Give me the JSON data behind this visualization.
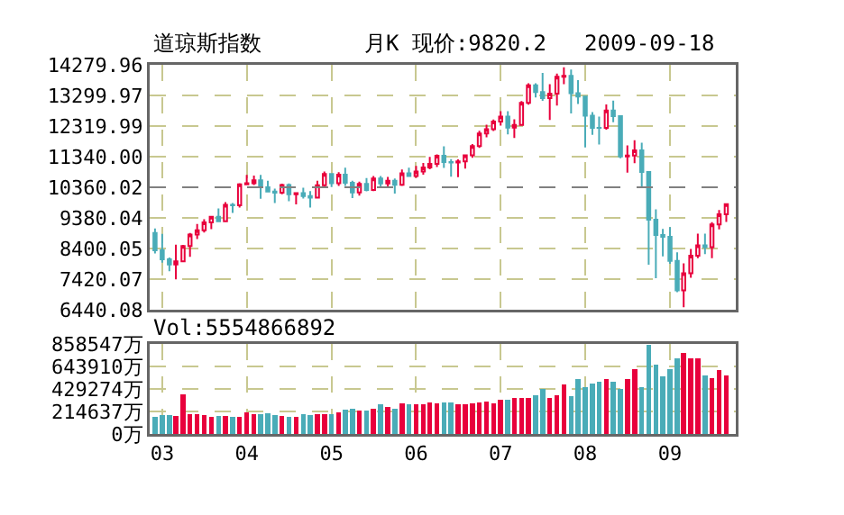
{
  "chart_data": [
    {
      "type": "candlestick",
      "title": "道琼斯指数",
      "annotations": [
        "月K 现价:9820.2",
        "2009-09-18"
      ],
      "x": [
        "2002-12",
        "2003-01",
        "2003-02",
        "2003-03",
        "2003-04",
        "2003-05",
        "2003-06",
        "2003-07",
        "2003-08",
        "2003-09",
        "2003-10",
        "2003-11",
        "2003-12",
        "2004-01",
        "2004-02",
        "2004-03",
        "2004-04",
        "2004-05",
        "2004-06",
        "2004-07",
        "2004-08",
        "2004-09",
        "2004-10",
        "2004-11",
        "2004-12",
        "2005-01",
        "2005-02",
        "2005-03",
        "2005-04",
        "2005-05",
        "2005-06",
        "2005-07",
        "2005-08",
        "2005-09",
        "2005-10",
        "2005-11",
        "2005-12",
        "2006-01",
        "2006-02",
        "2006-03",
        "2006-04",
        "2006-05",
        "2006-06",
        "2006-07",
        "2006-08",
        "2006-09",
        "2006-10",
        "2006-11",
        "2006-12",
        "2007-01",
        "2007-02",
        "2007-03",
        "2007-04",
        "2007-05",
        "2007-06",
        "2007-07",
        "2007-08",
        "2007-09",
        "2007-10",
        "2007-11",
        "2007-12",
        "2008-01",
        "2008-02",
        "2008-03",
        "2008-04",
        "2008-05",
        "2008-06",
        "2008-07",
        "2008-08",
        "2008-09",
        "2008-10",
        "2008-11",
        "2008-12",
        "2009-01",
        "2009-02",
        "2009-03",
        "2009-04",
        "2009-05",
        "2009-06",
        "2009-07",
        "2009-08",
        "2009-09"
      ],
      "ohlc": [
        [
          8896,
          9043,
          8242,
          8342
        ],
        [
          8342,
          8869,
          7946,
          8054
        ],
        [
          8054,
          8109,
          7673,
          7891
        ],
        [
          7891,
          8522,
          7416,
          7992
        ],
        [
          7992,
          8515,
          7992,
          8480
        ],
        [
          8480,
          8898,
          8135,
          8850
        ],
        [
          8850,
          9188,
          8702,
          8985
        ],
        [
          8985,
          9336,
          8912,
          9233
        ],
        [
          9233,
          9429,
          9016,
          9415
        ],
        [
          9415,
          9686,
          9255,
          9275
        ],
        [
          9275,
          9884,
          9275,
          9801
        ],
        [
          9801,
          9858,
          9542,
          9782
        ],
        [
          9782,
          10487,
          9714,
          10453
        ],
        [
          10453,
          10753,
          10430,
          10488
        ],
        [
          10488,
          10737,
          10433,
          10584
        ],
        [
          10584,
          10754,
          9990,
          10357
        ],
        [
          10357,
          10570,
          10216,
          10226
        ],
        [
          10226,
          10317,
          9852,
          10188
        ],
        [
          10188,
          10479,
          10135,
          10435
        ],
        [
          10435,
          10480,
          9913,
          10140
        ],
        [
          10140,
          10198,
          9814,
          10174
        ],
        [
          10174,
          10344,
          9996,
          10080
        ],
        [
          10080,
          10239,
          9708,
          10027
        ],
        [
          10027,
          10572,
          10015,
          10428
        ],
        [
          10428,
          10868,
          10370,
          10783
        ],
        [
          10783,
          10783,
          10368,
          10490
        ],
        [
          10490,
          10841,
          10402,
          10766
        ],
        [
          10766,
          10984,
          10406,
          10504
        ],
        [
          10504,
          10568,
          10012,
          10193
        ],
        [
          10193,
          10542,
          10094,
          10467
        ],
        [
          10467,
          10656,
          10228,
          10275
        ],
        [
          10275,
          10720,
          10240,
          10641
        ],
        [
          10641,
          10719,
          10391,
          10482
        ],
        [
          10482,
          10690,
          10370,
          10569
        ],
        [
          10569,
          10640,
          10156,
          10440
        ],
        [
          10440,
          10931,
          10406,
          10806
        ],
        [
          10806,
          10985,
          10704,
          10718
        ],
        [
          10718,
          11043,
          10661,
          10865
        ],
        [
          10865,
          11137,
          10762,
          10993
        ],
        [
          10993,
          11334,
          10935,
          11109
        ],
        [
          11109,
          11413,
          11005,
          11367
        ],
        [
          11367,
          11670,
          10983,
          11168
        ],
        [
          11168,
          11258,
          10698,
          11150
        ],
        [
          11150,
          11250,
          10684,
          11186
        ],
        [
          11186,
          11397,
          10955,
          11381
        ],
        [
          11381,
          11740,
          11305,
          11679
        ],
        [
          11679,
          12167,
          11620,
          12081
        ],
        [
          12081,
          12361,
          11963,
          12222
        ],
        [
          12222,
          12529,
          12161,
          12463
        ],
        [
          12463,
          12796,
          12335,
          12622
        ],
        [
          12622,
          12795,
          12050,
          12268
        ],
        [
          12268,
          12535,
          11939,
          12354
        ],
        [
          12354,
          13120,
          12337,
          13063
        ],
        [
          13063,
          13692,
          13007,
          13627
        ],
        [
          13627,
          13692,
          13232,
          13409
        ],
        [
          13409,
          14022,
          13130,
          13212
        ],
        [
          13212,
          13657,
          12518,
          13358
        ],
        [
          13358,
          14000,
          12979,
          13896
        ],
        [
          13896,
          14198,
          13664,
          13930
        ],
        [
          13930,
          14131,
          12725,
          13372
        ],
        [
          13372,
          13791,
          13025,
          13265
        ],
        [
          13265,
          13280,
          11635,
          12650
        ],
        [
          12650,
          12767,
          12036,
          12266
        ],
        [
          12266,
          12622,
          11731,
          12263
        ],
        [
          12263,
          13010,
          12202,
          12820
        ],
        [
          12820,
          13136,
          12442,
          12638
        ],
        [
          12638,
          12638,
          11287,
          11350
        ],
        [
          11350,
          11700,
          10827,
          11378
        ],
        [
          11378,
          11867,
          11131,
          11544
        ],
        [
          11544,
          11790,
          10365,
          10851
        ],
        [
          10851,
          10882,
          7882,
          9325
        ],
        [
          9325,
          9654,
          7449,
          8829
        ],
        [
          8829,
          9026,
          8149,
          8776
        ],
        [
          8776,
          9088,
          7909,
          8001
        ],
        [
          8001,
          8280,
          7000,
          7063
        ],
        [
          7063,
          7924,
          6520,
          7609
        ],
        [
          7609,
          8388,
          7467,
          8168
        ],
        [
          8168,
          8877,
          8087,
          8500
        ],
        [
          8500,
          8877,
          8221,
          8447
        ],
        [
          8447,
          9245,
          8087,
          9172
        ],
        [
          9172,
          9630,
          9013,
          9496
        ],
        [
          9496,
          9829,
          9253,
          9820
        ]
      ],
      "xlim": [
        "2002-11-08",
        "2009-10-12"
      ],
      "xticks": [
        {
          "value": "2003-01",
          "label": null
        },
        {
          "value": "2004-01",
          "label": null
        },
        {
          "value": "2005-01",
          "label": null
        },
        {
          "value": "2006-01",
          "label": null
        },
        {
          "value": "2007-01",
          "label": null
        },
        {
          "value": "2008-01",
          "label": null
        },
        {
          "value": "2009-01",
          "label": null
        }
      ],
      "ylim": [
        6440.08,
        14279.96
      ],
      "yticks": [
        6440.08,
        7420.07,
        8400.05,
        9380.04,
        10360.02,
        {
          "value": 11340,
          "label": "11340.00"
        },
        12319.99,
        13299.97,
        14279.96
      ],
      "ref_lines": [
        {
          "axis": "y",
          "value": 10360.02,
          "color": "#808080",
          "line_style": "dashed"
        }
      ],
      "grid": true,
      "tick_labels": "y"
    },
    {
      "type": "bar",
      "annotations": [
        "Vol:5554866892"
      ],
      "x": [
        "2002-12",
        "2003-01",
        "2003-02",
        "2003-03",
        "2003-04",
        "2003-05",
        "2003-06",
        "2003-07",
        "2003-08",
        "2003-09",
        "2003-10",
        "2003-11",
        "2003-12",
        "2004-01",
        "2004-02",
        "2004-03",
        "2004-04",
        "2004-05",
        "2004-06",
        "2004-07",
        "2004-08",
        "2004-09",
        "2004-10",
        "2004-11",
        "2004-12",
        "2005-01",
        "2005-02",
        "2005-03",
        "2005-04",
        "2005-05",
        "2005-06",
        "2005-07",
        "2005-08",
        "2005-09",
        "2005-10",
        "2005-11",
        "2005-12",
        "2006-01",
        "2006-02",
        "2006-03",
        "2006-04",
        "2006-05",
        "2006-06",
        "2006-07",
        "2006-08",
        "2006-09",
        "2006-10",
        "2006-11",
        "2006-12",
        "2007-01",
        "2007-02",
        "2007-03",
        "2007-04",
        "2007-05",
        "2007-06",
        "2007-07",
        "2007-08",
        "2007-09",
        "2007-10",
        "2007-11",
        "2007-12",
        "2008-01",
        "2008-02",
        "2008-03",
        "2008-04",
        "2008-05",
        "2008-06",
        "2008-07",
        "2008-08",
        "2008-09",
        "2008-10",
        "2008-11",
        "2008-12",
        "2009-01",
        "2009-02",
        "2009-03",
        "2009-04",
        "2009-05",
        "2009-06",
        "2009-07",
        "2009-08",
        "2009-09"
      ],
      "values": [
        160000,
        180000,
        180000,
        170000,
        380000,
        190000,
        190000,
        180000,
        160000,
        170000,
        170000,
        160000,
        160000,
        210000,
        190000,
        190000,
        200000,
        180000,
        170000,
        160000,
        160000,
        190000,
        180000,
        190000,
        190000,
        190000,
        210000,
        230000,
        240000,
        220000,
        220000,
        240000,
        280000,
        260000,
        240000,
        290000,
        280000,
        280000,
        280000,
        300000,
        290000,
        300000,
        300000,
        280000,
        280000,
        290000,
        300000,
        310000,
        290000,
        330000,
        330000,
        340000,
        340000,
        340000,
        370000,
        430000,
        340000,
        370000,
        470000,
        360000,
        520000,
        450000,
        480000,
        500000,
        520000,
        500000,
        430000,
        520000,
        620000,
        450000,
        850000,
        660000,
        550000,
        620000,
        720000,
        770000,
        720000,
        720000,
        560000,
        530000,
        610000,
        555487
      ],
      "colors": [
        "#4aacb8",
        "#4aacb8",
        "#4aacb8",
        "#e8003c",
        "#e8003c",
        "#e8003c",
        "#e8003c",
        "#e8003c",
        "#e8003c",
        "#4aacb8",
        "#e8003c",
        "#4aacb8",
        "#e8003c",
        "#e8003c",
        "#e8003c",
        "#4aacb8",
        "#4aacb8",
        "#4aacb8",
        "#e8003c",
        "#4aacb8",
        "#e8003c",
        "#4aacb8",
        "#4aacb8",
        "#e8003c",
        "#e8003c",
        "#4aacb8",
        "#e8003c",
        "#4aacb8",
        "#4aacb8",
        "#e8003c",
        "#4aacb8",
        "#e8003c",
        "#4aacb8",
        "#e8003c",
        "#4aacb8",
        "#e8003c",
        "#4aacb8",
        "#e8003c",
        "#e8003c",
        "#e8003c",
        "#e8003c",
        "#4aacb8",
        "#4aacb8",
        "#e8003c",
        "#e8003c",
        "#e8003c",
        "#e8003c",
        "#e8003c",
        "#e8003c",
        "#e8003c",
        "#4aacb8",
        "#e8003c",
        "#e8003c",
        "#e8003c",
        "#4aacb8",
        "#4aacb8",
        "#e8003c",
        "#e8003c",
        "#e8003c",
        "#4aacb8",
        "#4aacb8",
        "#4aacb8",
        "#4aacb8",
        "#4aacb8",
        "#e8003c",
        "#4aacb8",
        "#4aacb8",
        "#e8003c",
        "#e8003c",
        "#4aacb8",
        "#4aacb8",
        "#4aacb8",
        "#4aacb8",
        "#4aacb8",
        "#4aacb8",
        "#e8003c",
        "#e8003c",
        "#e8003c",
        "#4aacb8",
        "#e8003c",
        "#e8003c",
        "#e8003c"
      ],
      "xlim": [
        "2002-11-08",
        "2009-10-12"
      ],
      "xticks": [
        {
          "value": "2003-01",
          "label": "03"
        },
        {
          "value": "2004-01",
          "label": "04"
        },
        {
          "value": "2005-01",
          "label": "05"
        },
        {
          "value": "2006-01",
          "label": "06"
        },
        {
          "value": "2007-01",
          "label": "07"
        },
        {
          "value": "2008-01",
          "label": "08"
        },
        {
          "value": "2009-01",
          "label": "09"
        }
      ],
      "ylim": [
        0,
        858547
      ],
      "yticks": [
        {
          "value": 0,
          "label": "0万"
        },
        {
          "value": 214637,
          "label": "214637万"
        },
        {
          "value": 429274,
          "label": "429274万"
        },
        {
          "value": 643910,
          "label": "643910万"
        },
        {
          "value": 858547,
          "label": "858547万"
        }
      ],
      "grid": true
    }
  ]
}
